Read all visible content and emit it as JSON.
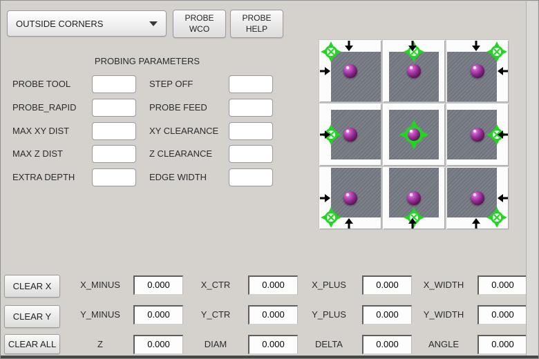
{
  "toolbar": {
    "mode_value": "OUTSIDE CORNERS",
    "probe_wco": "PROBE\nWCO",
    "probe_help": "PROBE\nHELP"
  },
  "parameters": {
    "title": "PROBING PARAMETERS",
    "left_labels": [
      "PROBE TOOL",
      "PROBE_RAPID",
      "MAX XY DIST",
      "MAX Z DIST",
      "EXTRA DEPTH"
    ],
    "right_labels": [
      "STEP OFF",
      "PROBE FEED",
      "XY CLEARANCE",
      "Z CLEARANCE",
      "EDGE WIDTH"
    ],
    "left_values": [
      "",
      "",
      "",
      "",
      ""
    ],
    "right_values": [
      "",
      "",
      "",
      "",
      ""
    ]
  },
  "probe_image": {
    "colors": {
      "crosshair_green": "#20d620",
      "square_gray": "#757a84",
      "sphere_purple": "#8d2a8d",
      "arrow_black": "#000000"
    },
    "cells": [
      {
        "id": "top-left",
        "crosshair": "top-left",
        "arrows": [
          "down",
          "right"
        ]
      },
      {
        "id": "top-center",
        "crosshair": "top-center",
        "arrows": [
          "down"
        ]
      },
      {
        "id": "top-right",
        "crosshair": "top-right",
        "arrows": [
          "down",
          "left"
        ]
      },
      {
        "id": "mid-left",
        "crosshair": "mid-left",
        "arrows": [
          "right"
        ]
      },
      {
        "id": "center",
        "crosshair": "center",
        "arrows": []
      },
      {
        "id": "mid-right",
        "crosshair": "mid-right",
        "arrows": [
          "left"
        ]
      },
      {
        "id": "bottom-left",
        "crosshair": "bottom-left",
        "arrows": [
          "right",
          "up"
        ]
      },
      {
        "id": "bottom-center",
        "crosshair": "bottom-center",
        "arrows": [
          "up"
        ]
      },
      {
        "id": "bottom-right",
        "crosshair": "bottom-right",
        "arrows": [
          "left",
          "up"
        ]
      }
    ]
  },
  "results": {
    "clear_buttons": [
      "CLEAR X",
      "CLEAR Y",
      "CLEAR ALL"
    ],
    "rows": [
      [
        {
          "label": "X_MINUS",
          "value": "0.000"
        },
        {
          "label": "X_CTR",
          "value": "0.000"
        },
        {
          "label": "X_PLUS",
          "value": "0.000"
        },
        {
          "label": "X_WIDTH",
          "value": "0.000"
        }
      ],
      [
        {
          "label": "Y_MINUS",
          "value": "0.000"
        },
        {
          "label": "Y_CTR",
          "value": "0.000"
        },
        {
          "label": "Y_PLUS",
          "value": "0.000"
        },
        {
          "label": "Y_WIDTH",
          "value": "0.000"
        }
      ],
      [
        {
          "label": "Z",
          "value": "0.000"
        },
        {
          "label": "DIAM",
          "value": "0.000"
        },
        {
          "label": "DELTA",
          "value": "0.000"
        },
        {
          "label": "ANGLE",
          "value": "0.000"
        }
      ]
    ]
  }
}
